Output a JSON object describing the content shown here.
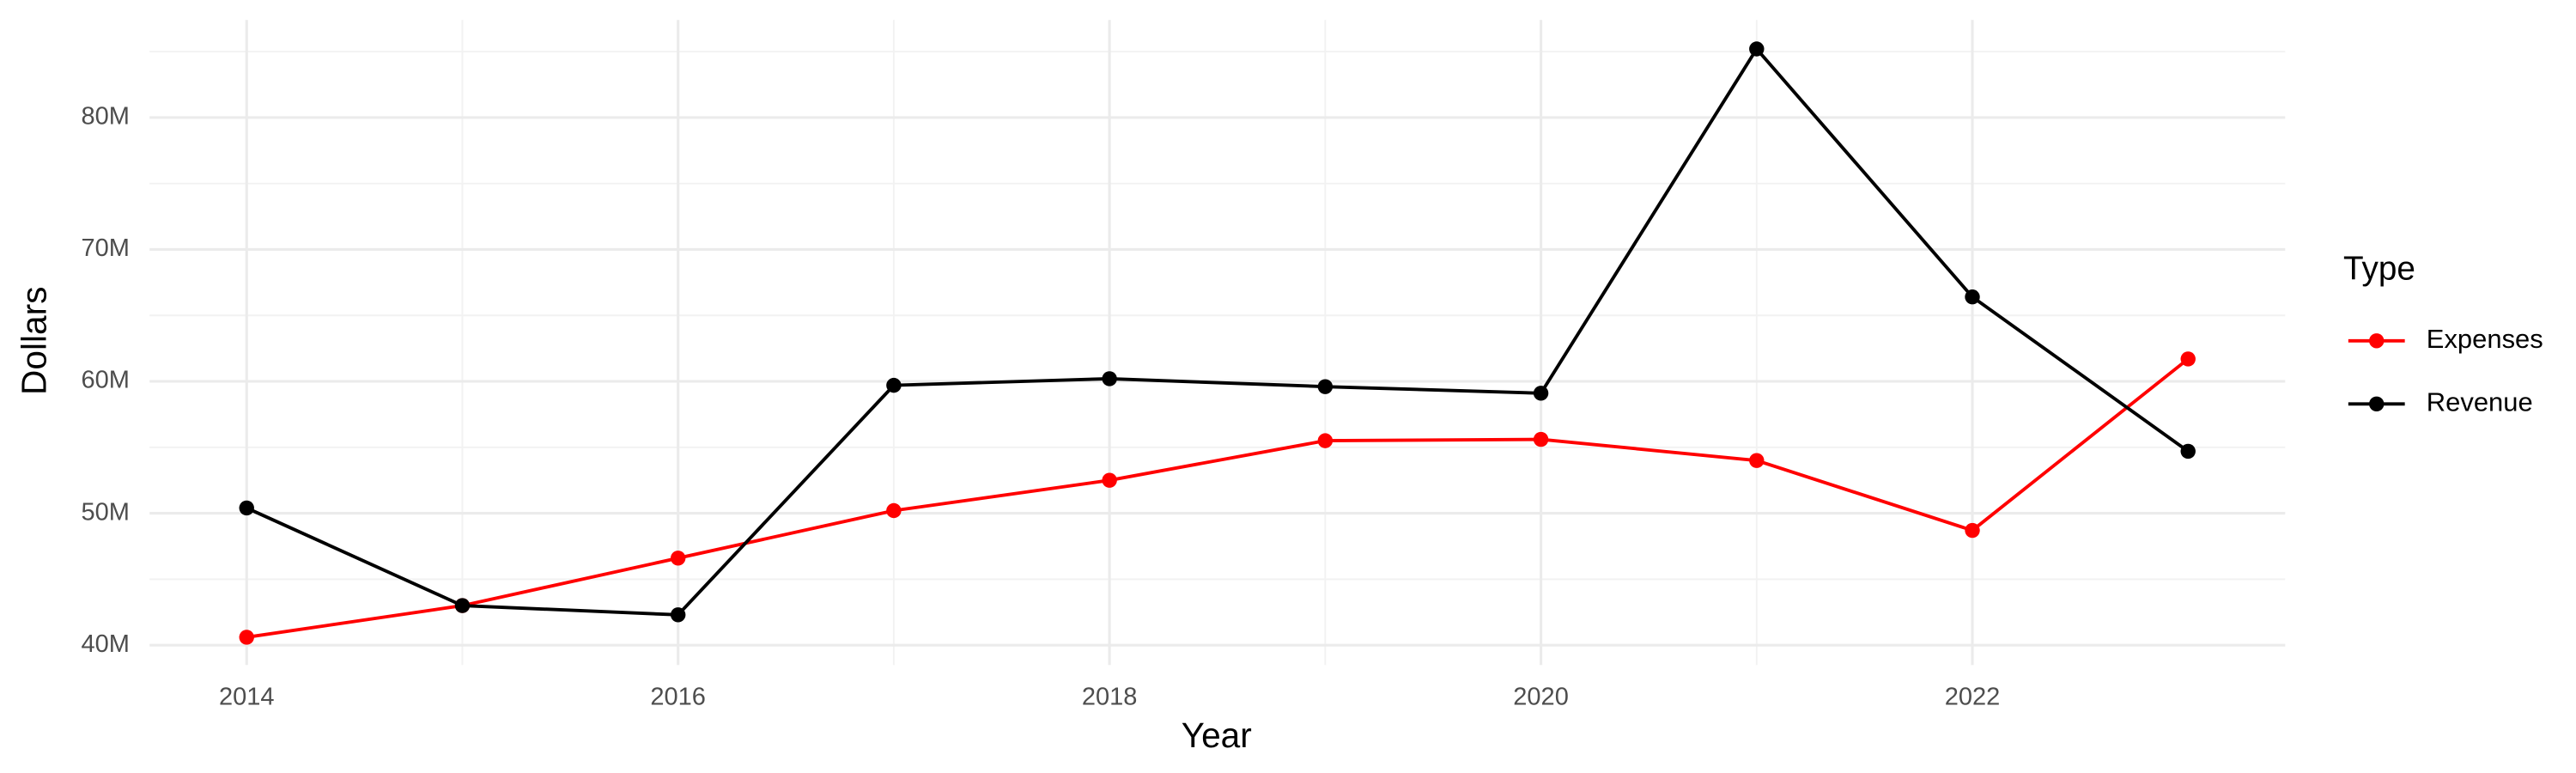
{
  "chart_data": {
    "type": "line",
    "x_label": "Year",
    "y_label": "Dollars",
    "legend_title": "Type",
    "legend_position": "right",
    "x": [
      2014,
      2015,
      2016,
      2017,
      2018,
      2019,
      2020,
      2021,
      2022,
      2023
    ],
    "series": [
      {
        "name": "Expenses",
        "color": "#ff0000",
        "values": [
          40600000,
          43000000,
          46600000,
          50200000,
          52500000,
          55500000,
          55600000,
          54000000,
          48700000,
          61700000
        ]
      },
      {
        "name": "Revenue",
        "color": "#000000",
        "values": [
          50400000,
          43000000,
          42300000,
          59700000,
          60200000,
          59600000,
          59100000,
          85200000,
          66400000,
          54700000
        ]
      }
    ],
    "xlim": [
      2013.55,
      2023.45
    ],
    "xticks": [
      2014,
      2016,
      2018,
      2020,
      2022
    ],
    "ylim": [
      38500000,
      87400000
    ],
    "yticks": [
      {
        "value": 40000000,
        "label": "40M"
      },
      {
        "value": 50000000,
        "label": "50M"
      },
      {
        "value": 60000000,
        "label": "60M"
      },
      {
        "value": 70000000,
        "label": "70M"
      },
      {
        "value": 80000000,
        "label": "80M"
      }
    ],
    "grid": true
  }
}
